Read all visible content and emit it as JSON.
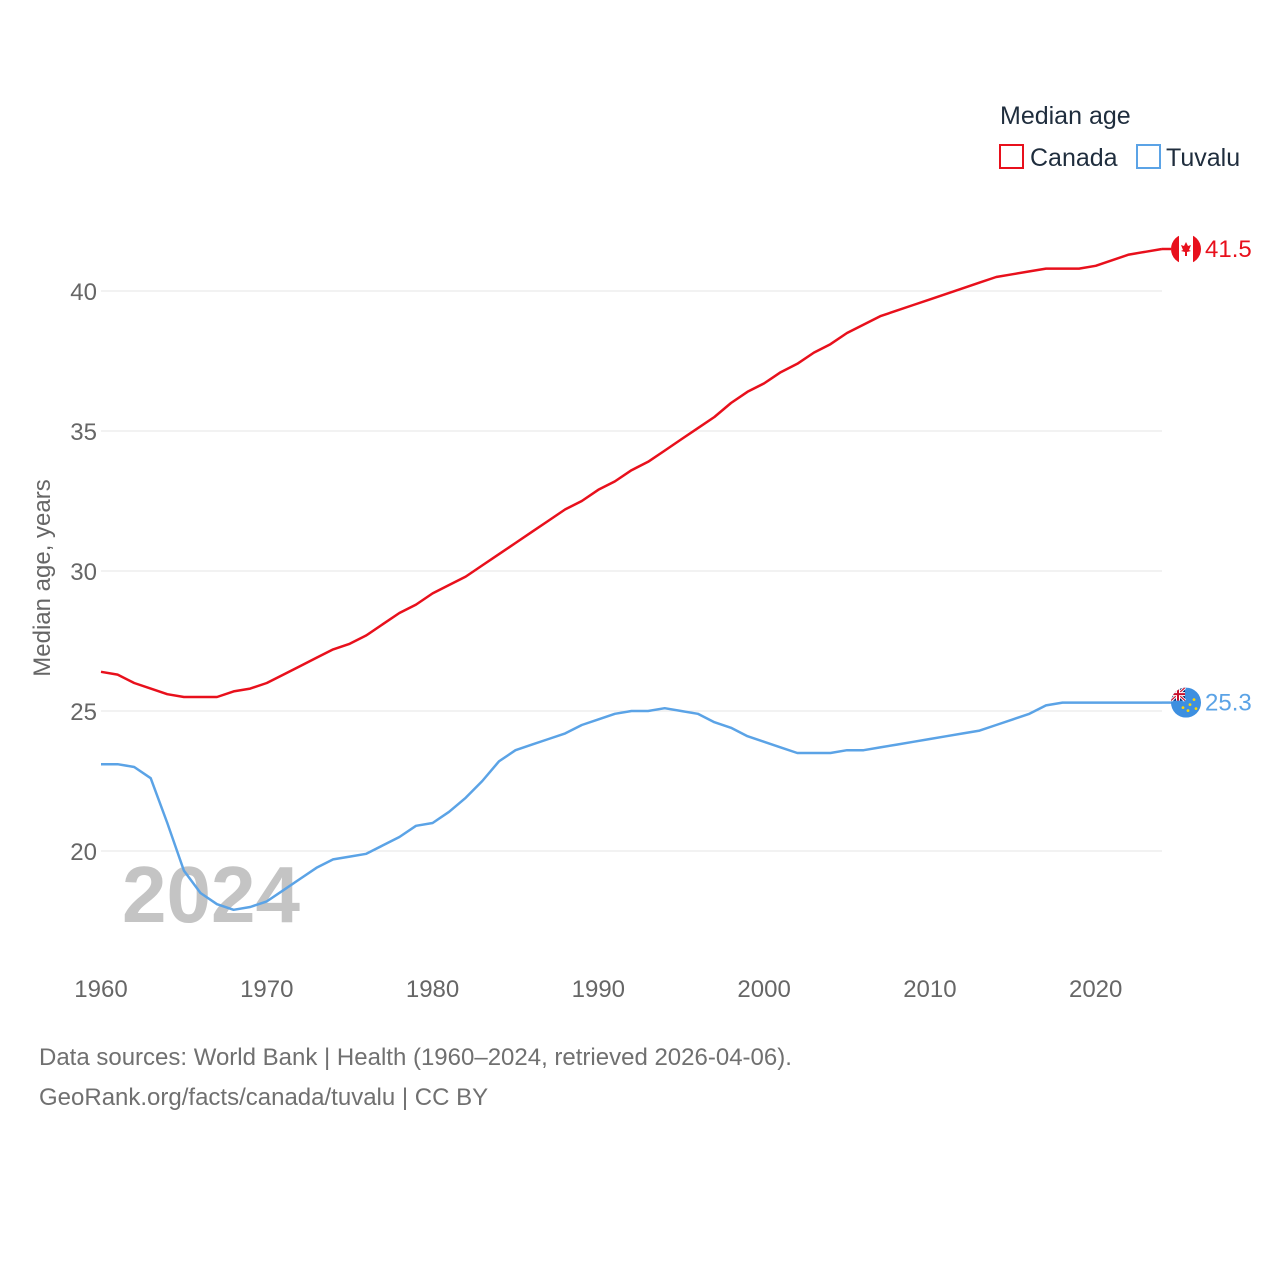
{
  "chart_data": {
    "type": "line",
    "ylabel": "Median age, years",
    "legend_title": "Median age",
    "legend_position": "top-right",
    "year_watermark": "2024",
    "xlim": [
      1960,
      2024
    ],
    "ylim": [
      17,
      43.5
    ],
    "x_ticks": [
      1960,
      1970,
      1980,
      1990,
      2000,
      2010,
      2020
    ],
    "y_ticks": [
      20,
      25,
      30,
      35,
      40
    ],
    "grid": true,
    "x": [
      1960,
      1961,
      1962,
      1963,
      1964,
      1965,
      1966,
      1967,
      1968,
      1969,
      1970,
      1971,
      1972,
      1973,
      1974,
      1975,
      1976,
      1977,
      1978,
      1979,
      1980,
      1981,
      1982,
      1983,
      1984,
      1985,
      1986,
      1987,
      1988,
      1989,
      1990,
      1991,
      1992,
      1993,
      1994,
      1995,
      1996,
      1997,
      1998,
      1999,
      2000,
      2001,
      2002,
      2003,
      2004,
      2005,
      2006,
      2007,
      2008,
      2009,
      2010,
      2011,
      2012,
      2013,
      2014,
      2015,
      2016,
      2017,
      2018,
      2019,
      2020,
      2021,
      2022,
      2023,
      2024
    ],
    "series": [
      {
        "name": "Canada",
        "color": "#e8101c",
        "end_label": "41.5",
        "values": [
          26.4,
          26.3,
          26.0,
          25.8,
          25.6,
          25.5,
          25.5,
          25.5,
          25.7,
          25.8,
          26.0,
          26.3,
          26.6,
          26.9,
          27.2,
          27.4,
          27.7,
          28.1,
          28.5,
          28.8,
          29.2,
          29.5,
          29.8,
          30.2,
          30.6,
          31.0,
          31.4,
          31.8,
          32.2,
          32.5,
          32.9,
          33.2,
          33.6,
          33.9,
          34.3,
          34.7,
          35.1,
          35.5,
          36.0,
          36.4,
          36.7,
          37.1,
          37.4,
          37.8,
          38.1,
          38.5,
          38.8,
          39.1,
          39.3,
          39.5,
          39.7,
          39.9,
          40.1,
          40.3,
          40.5,
          40.6,
          40.7,
          40.8,
          40.8,
          40.8,
          40.9,
          41.1,
          41.3,
          41.4,
          41.5
        ]
      },
      {
        "name": "Tuvalu",
        "color": "#5ba3e6",
        "end_label": "25.3",
        "values": [
          23.1,
          23.1,
          23.0,
          22.6,
          21.0,
          19.3,
          18.5,
          18.1,
          17.9,
          18.0,
          18.2,
          18.6,
          19.0,
          19.4,
          19.7,
          19.8,
          19.9,
          20.2,
          20.5,
          20.9,
          21.0,
          21.4,
          21.9,
          22.5,
          23.2,
          23.6,
          23.8,
          24.0,
          24.2,
          24.5,
          24.7,
          24.9,
          25.0,
          25.0,
          25.1,
          25.0,
          24.9,
          24.6,
          24.4,
          24.1,
          23.9,
          23.7,
          23.5,
          23.5,
          23.5,
          23.6,
          23.6,
          23.7,
          23.8,
          23.9,
          24.0,
          24.1,
          24.2,
          24.3,
          24.5,
          24.7,
          24.9,
          25.2,
          25.3,
          25.3,
          25.3,
          25.3,
          25.3,
          25.3,
          25.3
        ]
      }
    ]
  },
  "footer": {
    "line1": "Data sources: World Bank | Health (1960–2024, retrieved 2026-04-06).",
    "line2": "GeoRank.org/facts/canada/tuvalu | CC BY"
  }
}
